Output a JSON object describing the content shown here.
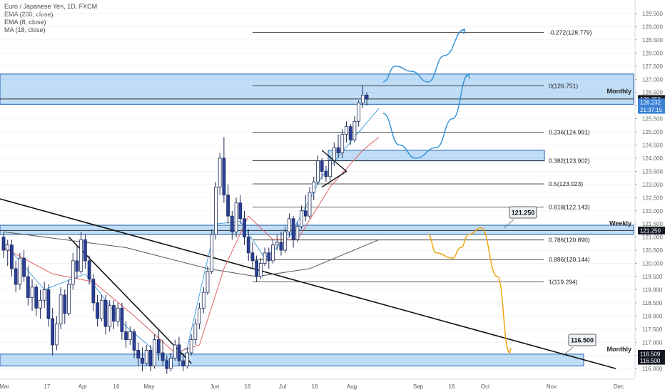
{
  "header": {
    "title": "Euro / Japanese Yen, 1D, FXCM",
    "indicators": [
      "EMA (200, close)",
      "EMA (8, close)",
      "MA (18, close)"
    ]
  },
  "price_axis": {
    "ticks": [
      "129.500",
      "129.000",
      "128.500",
      "128.000",
      "127.500",
      "127.000",
      "126.500",
      "126.000",
      "125.500",
      "125.000",
      "124.500",
      "124.000",
      "123.500",
      "123.000",
      "122.500",
      "122.000",
      "121.500",
      "121.000",
      "120.500",
      "120.000",
      "119.500",
      "119.000",
      "118.500",
      "118.000",
      "117.500",
      "117.000",
      "116.500",
      "116.000"
    ],
    "badges": [
      {
        "text": "126.250",
        "price": 126.25,
        "style": "dark"
      },
      {
        "text": "126.232",
        "price": 126.12,
        "style": "blue"
      },
      {
        "text": "21:37:15",
        "price": 125.84,
        "style": "blue"
      },
      {
        "text": "121.250",
        "price": 121.25,
        "style": "dark"
      },
      {
        "text": "116.509",
        "price": 116.56,
        "style": "dark"
      },
      {
        "text": "116.500",
        "price": 116.3,
        "style": "dark"
      }
    ]
  },
  "time_axis": {
    "labels": [
      "Mar",
      "17",
      "Apr",
      "16",
      "May",
      "Jun",
      "16",
      "Jul",
      "16",
      "Aug",
      "Sep",
      "16",
      "Oct",
      "Nov",
      "Dec"
    ]
  },
  "zones": [
    {
      "label": "Monthly",
      "from": 126.05,
      "to": 127.2
    },
    {
      "label": "Weekly",
      "from": 121.1,
      "to": 121.45
    },
    {
      "label": "Monthly",
      "from": 116.1,
      "to": 116.55
    },
    {
      "label": "",
      "from": 123.9,
      "to": 124.3
    }
  ],
  "callouts": [
    {
      "text": "121.250",
      "price": 121.25
    },
    {
      "text": "116.500",
      "price": 116.5
    }
  ],
  "fibonacci": [
    {
      "label": "-0.272(128.779)",
      "price": 128.779
    },
    {
      "label": "0(126.751)",
      "price": 126.751
    },
    {
      "label": "0.236(124.991)",
      "price": 124.991
    },
    {
      "label": "0.382(123.902)",
      "price": 123.902
    },
    {
      "label": "0.5(123.023)",
      "price": 123.023
    },
    {
      "label": "0.618(122.143)",
      "price": 122.143
    },
    {
      "label": "0.786(120.890)",
      "price": 120.89
    },
    {
      "label": "0.886(120.144)",
      "price": 120.144
    },
    {
      "label": "1(119.294)",
      "price": 119.294
    }
  ],
  "chart_data": {
    "type": "candlestick",
    "symbol": "EURJPY",
    "timeframe": "1D",
    "ylim": [
      115.9,
      129.7
    ],
    "reference_line_price": 126.25,
    "candles": [
      [
        121.0,
        121.2,
        120.2,
        120.5
      ],
      [
        120.5,
        120.9,
        119.9,
        120.7
      ],
      [
        120.7,
        120.9,
        119.5,
        119.8
      ],
      [
        119.8,
        120.1,
        118.9,
        119.2
      ],
      [
        119.2,
        120.4,
        119.0,
        120.2
      ],
      [
        120.2,
        120.5,
        119.3,
        119.5
      ],
      [
        119.5,
        119.9,
        118.4,
        118.7
      ],
      [
        118.7,
        119.4,
        118.2,
        119.1
      ],
      [
        119.1,
        119.2,
        118.0,
        118.3
      ],
      [
        118.3,
        119.0,
        117.9,
        118.6
      ],
      [
        118.6,
        119.3,
        118.3,
        119.0
      ],
      [
        119.0,
        119.2,
        117.6,
        117.9
      ],
      [
        117.9,
        118.3,
        116.5,
        116.9
      ],
      [
        116.9,
        118.0,
        116.7,
        117.7
      ],
      [
        117.7,
        119.1,
        117.5,
        118.8
      ],
      [
        118.8,
        119.0,
        117.7,
        118.1
      ],
      [
        118.1,
        119.4,
        118.0,
        119.2
      ],
      [
        119.2,
        120.4,
        119.0,
        120.1
      ],
      [
        120.1,
        120.7,
        119.4,
        119.7
      ],
      [
        119.7,
        121.2,
        119.6,
        120.9
      ],
      [
        120.9,
        121.1,
        119.8,
        120.1
      ],
      [
        120.1,
        120.3,
        119.2,
        119.4
      ],
      [
        119.4,
        119.6,
        118.2,
        118.5
      ],
      [
        118.5,
        118.8,
        117.6,
        117.9
      ],
      [
        117.9,
        118.8,
        117.8,
        118.6
      ],
      [
        118.6,
        118.8,
        117.3,
        117.6
      ],
      [
        117.6,
        118.6,
        117.4,
        118.4
      ],
      [
        118.4,
        118.6,
        117.5,
        117.8
      ],
      [
        117.8,
        118.5,
        117.6,
        118.3
      ],
      [
        118.3,
        118.5,
        117.1,
        117.4
      ],
      [
        117.4,
        117.8,
        116.8,
        117.1
      ],
      [
        117.1,
        117.6,
        116.9,
        117.4
      ],
      [
        117.4,
        117.5,
        116.4,
        116.7
      ],
      [
        116.7,
        117.0,
        116.1,
        116.4
      ],
      [
        116.4,
        116.8,
        115.9,
        116.2
      ],
      [
        116.2,
        116.9,
        116.1,
        116.7
      ],
      [
        116.7,
        116.9,
        115.9,
        116.1
      ],
      [
        116.1,
        117.3,
        116.0,
        117.1
      ],
      [
        117.1,
        117.5,
        116.3,
        116.6
      ],
      [
        116.6,
        117.1,
        116.1,
        116.3
      ],
      [
        116.3,
        116.5,
        115.8,
        116.0
      ],
      [
        116.0,
        116.6,
        115.9,
        116.4
      ],
      [
        116.4,
        117.1,
        116.3,
        116.9
      ],
      [
        116.9,
        117.2,
        116.1,
        116.3
      ],
      [
        116.3,
        116.6,
        115.9,
        116.1
      ],
      [
        116.1,
        116.8,
        116.0,
        116.6
      ],
      [
        116.6,
        117.3,
        116.5,
        117.1
      ],
      [
        117.1,
        117.9,
        116.9,
        117.7
      ],
      [
        117.7,
        118.5,
        117.5,
        118.3
      ],
      [
        118.3,
        119.1,
        118.1,
        118.9
      ],
      [
        118.9,
        119.9,
        118.8,
        119.7
      ],
      [
        119.7,
        121.3,
        119.6,
        121.1
      ],
      [
        121.1,
        123.1,
        120.9,
        122.9
      ],
      [
        122.9,
        124.2,
        122.6,
        124.0
      ],
      [
        124.0,
        124.8,
        122.3,
        122.6
      ],
      [
        122.6,
        123.0,
        121.5,
        121.8
      ],
      [
        121.8,
        122.0,
        120.9,
        121.2
      ],
      [
        121.2,
        122.5,
        121.0,
        122.3
      ],
      [
        122.3,
        122.6,
        121.5,
        121.7
      ],
      [
        121.7,
        122.0,
        120.7,
        121.0
      ],
      [
        121.0,
        121.3,
        120.1,
        120.4
      ],
      [
        120.4,
        120.8,
        119.8,
        120.1
      ],
      [
        120.1,
        120.3,
        119.3,
        119.5
      ],
      [
        119.5,
        120.2,
        119.4,
        120.0
      ],
      [
        120.0,
        120.6,
        119.9,
        120.4
      ],
      [
        120.4,
        120.6,
        119.8,
        120.1
      ],
      [
        120.1,
        120.9,
        120.0,
        120.7
      ],
      [
        120.7,
        121.1,
        120.5,
        120.8
      ],
      [
        120.8,
        121.2,
        120.3,
        120.5
      ],
      [
        120.5,
        121.4,
        120.4,
        121.2
      ],
      [
        121.2,
        121.9,
        121.0,
        121.7
      ],
      [
        121.7,
        121.8,
        120.6,
        120.9
      ],
      [
        120.9,
        121.6,
        120.8,
        121.4
      ],
      [
        121.4,
        122.2,
        121.3,
        122.0
      ],
      [
        122.0,
        122.6,
        121.6,
        121.8
      ],
      [
        121.8,
        122.9,
        121.7,
        122.7
      ],
      [
        122.7,
        123.3,
        122.4,
        123.1
      ],
      [
        123.1,
        124.1,
        123.0,
        123.9
      ],
      [
        123.9,
        124.0,
        123.2,
        123.5
      ],
      [
        123.5,
        123.7,
        123.1,
        123.3
      ],
      [
        123.3,
        124.1,
        123.1,
        123.9
      ],
      [
        123.9,
        124.6,
        123.7,
        124.4
      ],
      [
        124.4,
        124.9,
        124.0,
        124.2
      ],
      [
        124.2,
        125.1,
        124.0,
        124.9
      ],
      [
        124.9,
        125.4,
        124.6,
        125.2
      ],
      [
        125.2,
        125.3,
        124.5,
        124.7
      ],
      [
        124.7,
        125.6,
        124.6,
        125.4
      ],
      [
        125.4,
        126.2,
        125.2,
        126.1
      ],
      [
        126.1,
        126.75,
        125.9,
        126.4
      ],
      [
        126.4,
        126.5,
        126.0,
        126.25
      ]
    ],
    "moving_averages": [
      {
        "name": "EMA (200, close)",
        "color": "#555555",
        "values": [
          [
            0,
            121.2
          ],
          [
            30,
            120.6
          ],
          [
            50,
            119.8
          ],
          [
            62,
            119.5
          ],
          [
            75,
            119.8
          ],
          [
            92,
            120.9
          ]
        ]
      },
      {
        "name": "EMA (8, close)",
        "color": "#4aa3df",
        "values": [
          [
            0,
            120.8
          ],
          [
            10,
            119.0
          ],
          [
            20,
            119.6
          ],
          [
            30,
            117.6
          ],
          [
            40,
            116.3
          ],
          [
            45,
            116.8
          ],
          [
            52,
            121.5
          ],
          [
            58,
            121.6
          ],
          [
            64,
            120.2
          ],
          [
            70,
            121.0
          ],
          [
            78,
            123.3
          ],
          [
            86,
            124.8
          ],
          [
            92,
            125.9
          ]
        ]
      },
      {
        "name": "MA (18, close)",
        "color": "#e06060",
        "values": [
          [
            0,
            120.6
          ],
          [
            12,
            119.6
          ],
          [
            22,
            119.3
          ],
          [
            32,
            118.0
          ],
          [
            42,
            116.6
          ],
          [
            48,
            116.9
          ],
          [
            54,
            119.8
          ],
          [
            60,
            121.8
          ],
          [
            66,
            120.9
          ],
          [
            72,
            120.9
          ],
          [
            80,
            122.9
          ],
          [
            88,
            124.3
          ],
          [
            92,
            124.8
          ]
        ]
      }
    ],
    "trendlines": [
      {
        "from": [
          -2,
          122.5
        ],
        "to": [
          150,
          116.0
        ]
      },
      {
        "from": [
          16,
          121.0
        ],
        "to": [
          46,
          116.2
        ]
      }
    ],
    "pattern_triangle": [
      [
        78,
        124.3
      ],
      [
        84,
        123.5
      ],
      [
        78,
        122.9
      ]
    ],
    "projections": [
      {
        "color": "#2d8fd6",
        "points": [
          [
            93,
            125.7
          ],
          [
            97,
            124.5
          ],
          [
            101,
            124.0
          ],
          [
            106,
            124.4
          ],
          [
            110,
            125.5
          ],
          [
            114,
            127.2
          ]
        ]
      },
      {
        "color": "#2d8fd6",
        "points": [
          [
            93,
            126.9
          ],
          [
            96,
            127.5
          ],
          [
            100,
            127.3
          ],
          [
            104,
            126.9
          ],
          [
            108,
            127.9
          ],
          [
            113,
            128.9
          ]
        ]
      },
      {
        "color": "#f0a000",
        "points": [
          [
            104,
            121.1
          ],
          [
            106,
            120.4
          ],
          [
            110,
            120.2
          ],
          [
            112,
            120.6
          ],
          [
            114,
            121.1
          ],
          [
            117,
            121.35
          ],
          [
            121,
            119.5
          ],
          [
            124,
            116.6
          ]
        ]
      }
    ]
  }
}
